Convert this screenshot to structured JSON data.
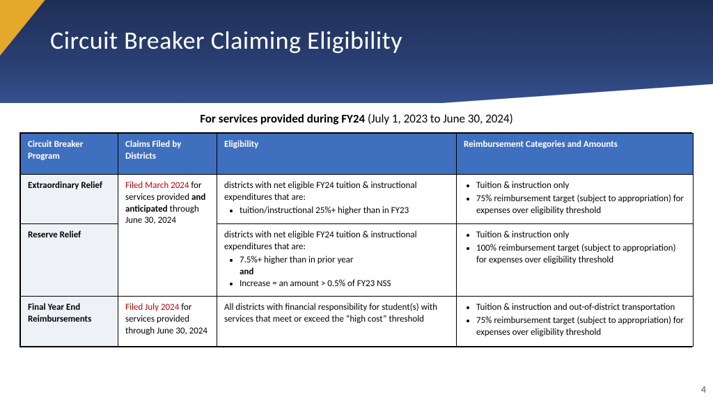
{
  "slide": {
    "title": "Circuit Breaker Claiming Eligibility",
    "page_number": "4",
    "subhead_bold": "For services provided during FY24",
    "subhead_rest": "  (July 1, 2023 to June 30, 2024)"
  },
  "colors": {
    "header_gradient_top": "#1e2f57",
    "header_gradient_bottom": "#35508f",
    "accent": "#e5a82a",
    "table_header": "#3f6fbf",
    "program_cell_bg": "#eef1f6",
    "red_text": "#c00000",
    "page_number": "#6b7fae"
  },
  "table": {
    "headers": {
      "c1": "Circuit Breaker Program",
      "c2": "Claims Filed by Districts",
      "c3": "Eligibility",
      "c4": "Reimbursement Categories and Amounts"
    },
    "rows": {
      "r1": {
        "program": "Extraordinary Relief",
        "claims_red": "Filed March 2024",
        "claims_rest_1": " for services provided ",
        "claims_bold": "and anticipated",
        "claims_rest_2": " through June 30, 2024",
        "elig_lead": "districts with net eligible FY24 tuition & instructional expenditures that are:",
        "elig_b1": "tuition/instructional 25%+ higher than in FY23",
        "reimb_b1": "Tuition & instruction only",
        "reimb_b2": "75% reimbursement target (subject to appropriation) for expenses over eligibility threshold"
      },
      "r2": {
        "program": "Reserve Relief",
        "elig_lead": "districts with net eligible FY24 tuition & instructional expenditures that are:",
        "elig_b1": "7.5%+ higher than in prior year",
        "elig_and": "and",
        "elig_b2": "Increase = an amount > 0.5% of FY23 NSS",
        "reimb_b1": "Tuition & instruction only",
        "reimb_b2": "100% reimbursement target (subject to appropriation) for expenses over eligibility threshold"
      },
      "r3": {
        "program": "Final Year End Reimbursements",
        "claims_red": "Filed July 2024",
        "claims_rest": " for services provided through June 30, 2024",
        "elig": "All districts with financial responsibility for student(s) with services that meet or exceed the “high cost” threshold",
        "reimb_b1": "Tuition & instruction and out-of-district transportation",
        "reimb_b2": "75% reimbursement target (subject to appropriation) for expenses over eligibility threshold"
      }
    }
  }
}
